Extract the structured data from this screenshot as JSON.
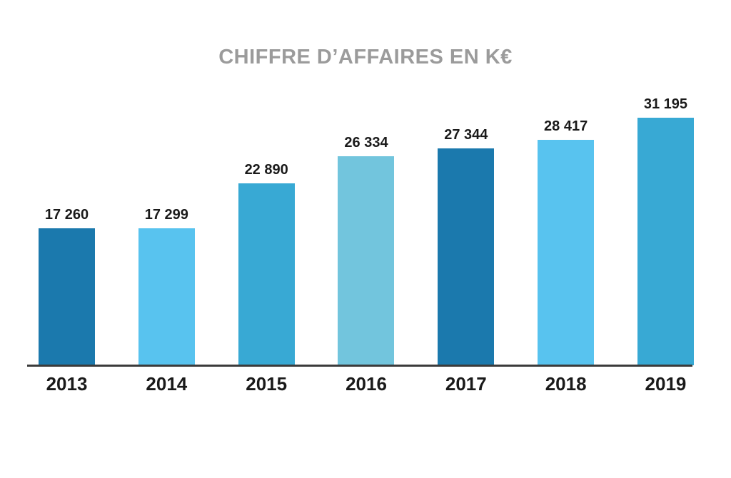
{
  "chart_data": {
    "type": "bar",
    "title": "CHIFFRE D’AFFAIRES EN K€",
    "categories": [
      "2013",
      "2014",
      "2015",
      "2016",
      "2017",
      "2018",
      "2019"
    ],
    "values": [
      17260,
      17299,
      22890,
      26334,
      27344,
      28417,
      31195
    ],
    "value_labels": [
      "17 260",
      "17 299",
      "22 890",
      "26 334",
      "27 344",
      "28 417",
      "31 195"
    ],
    "bar_colors": [
      "#1b79ad",
      "#58c3ef",
      "#38a9d4",
      "#72c5dd",
      "#1b79ad",
      "#58c3ef",
      "#38a9d4"
    ],
    "xlabel": "",
    "ylabel": "",
    "ylim": [
      0,
      31195
    ],
    "grid": false,
    "legend": "none",
    "data_labels": true,
    "colors": {
      "title_text": "#9b9b9b",
      "label_text": "#1a1a1a",
      "axis_line": "#3b3b3b",
      "background": "#ffffff"
    }
  }
}
